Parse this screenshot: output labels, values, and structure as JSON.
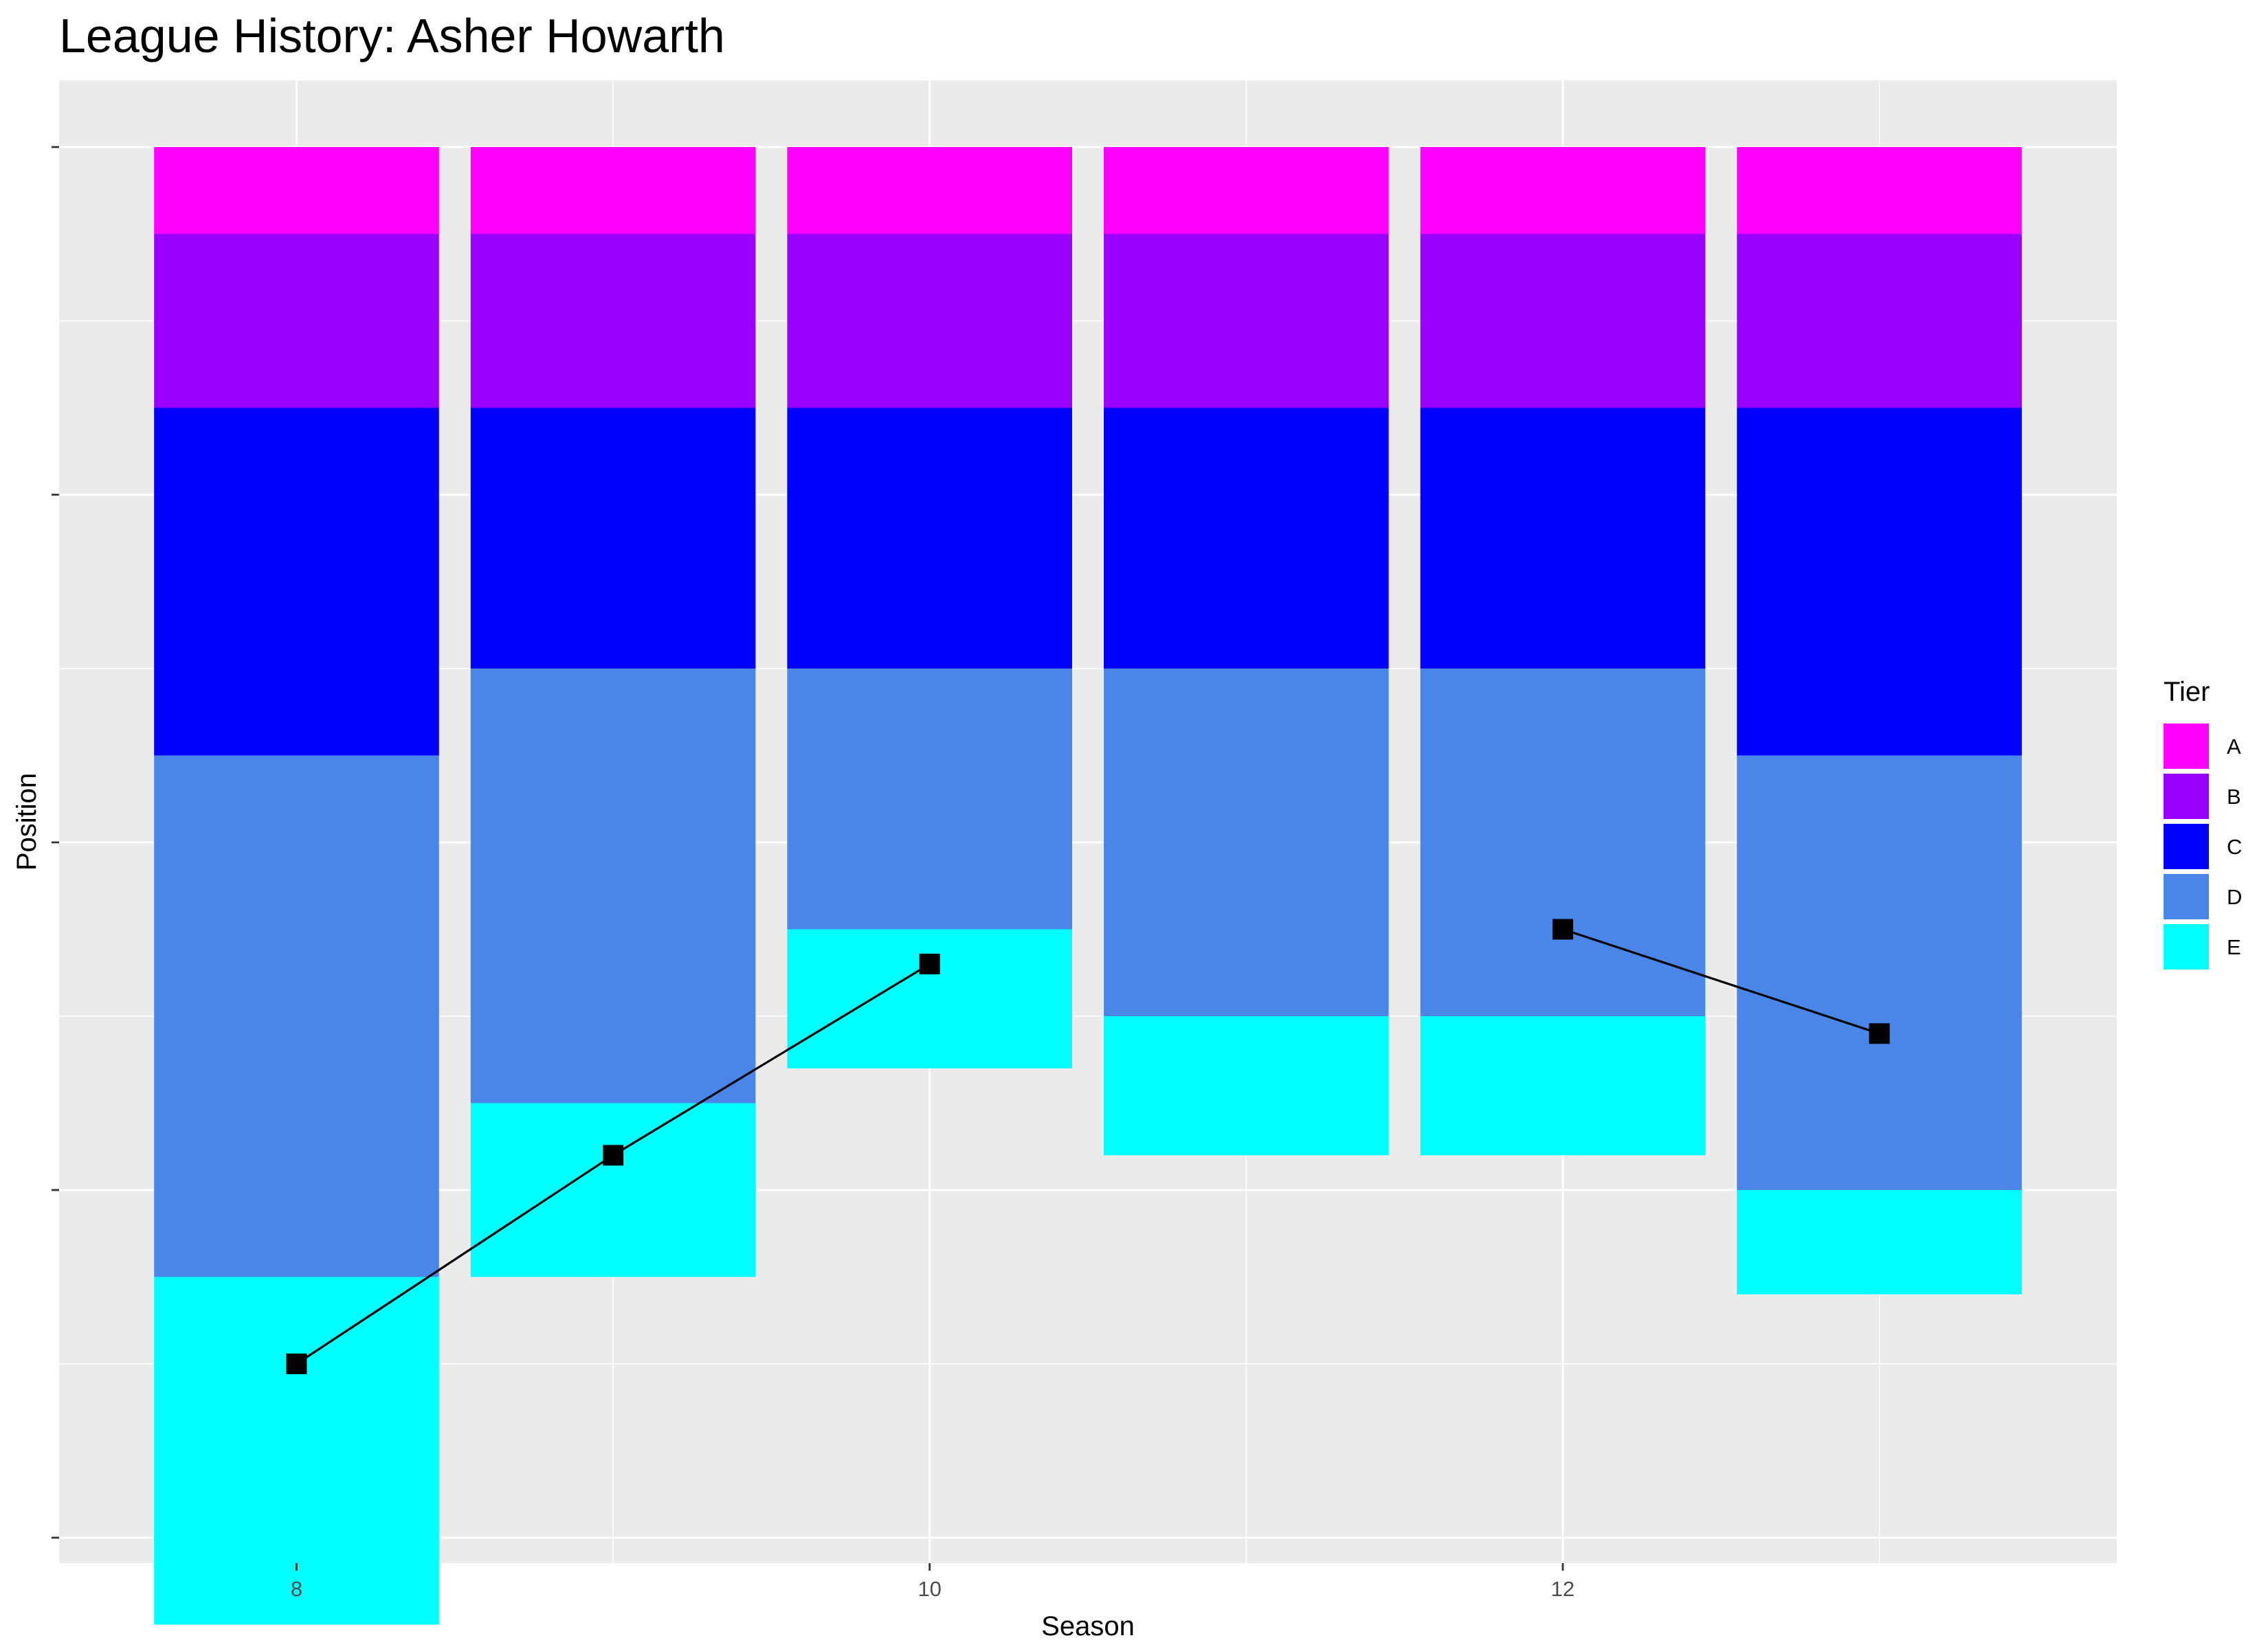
{
  "chart_data": {
    "type": "bar",
    "title": "League History: Asher Howarth",
    "xlabel": "Season",
    "ylabel": "Position",
    "x_ticks": [
      8,
      10,
      12
    ],
    "xlim": [
      7.25,
      13.75
    ],
    "ylim": [
      0,
      87
    ],
    "y_tick_positions": [
      0,
      20,
      40,
      60,
      80
    ],
    "y_tick_labels_shown": false,
    "grid": true,
    "legend": {
      "title": "Tier",
      "position": "right"
    },
    "tiers": [
      {
        "name": "A",
        "color": "#FF00FF"
      },
      {
        "name": "B",
        "color": "#9900FF"
      },
      {
        "name": "C",
        "color": "#0000FF"
      },
      {
        "name": "D",
        "color": "#4A86E8"
      },
      {
        "name": "E",
        "color": "#00FFFF"
      }
    ],
    "seasons": [
      {
        "season": 8,
        "tier_sizes": [
          5,
          10,
          20,
          30,
          20
        ]
      },
      {
        "season": 9,
        "tier_sizes": [
          5,
          10,
          15,
          25,
          10
        ]
      },
      {
        "season": 10,
        "tier_sizes": [
          5,
          10,
          15,
          15,
          8
        ]
      },
      {
        "season": 11,
        "tier_sizes": [
          5,
          10,
          15,
          20,
          8
        ]
      },
      {
        "season": 12,
        "tier_sizes": [
          5,
          10,
          15,
          20,
          8
        ]
      },
      {
        "season": 13,
        "tier_sizes": [
          5,
          10,
          20,
          25,
          6
        ]
      }
    ],
    "position_line": {
      "marker": "square",
      "color": "#000000",
      "segments": [
        [
          {
            "season": 8,
            "position": 70
          },
          {
            "season": 9,
            "position": 58
          },
          {
            "season": 10,
            "position": 47
          }
        ],
        [
          {
            "season": 12,
            "position": 45
          },
          {
            "season": 13,
            "position": 51
          }
        ]
      ]
    }
  }
}
